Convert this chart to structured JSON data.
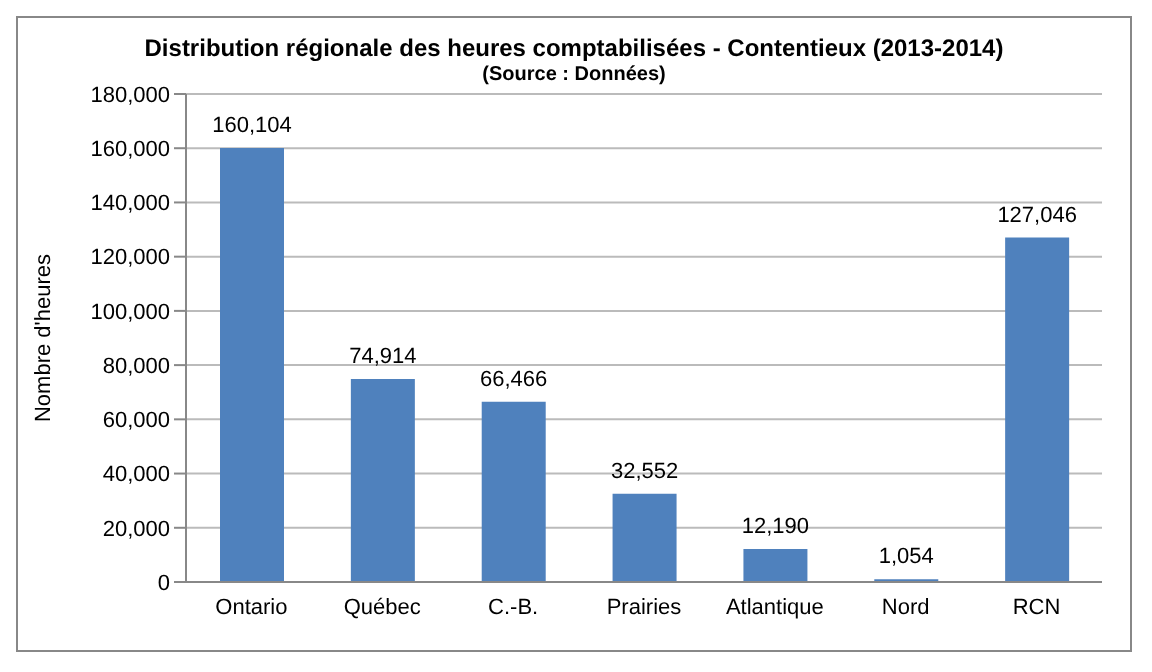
{
  "chart_data": {
    "type": "bar",
    "title": "Distribution régionale des heures comptabilisées  - Contentieux (2013-2014)",
    "subtitle": "(Source : Données)",
    "ylabel": "Nombre d'heures",
    "categories": [
      "Ontario",
      "Québec",
      "C.-B.",
      "Prairies",
      "Atlantique",
      "Nord",
      "RCN"
    ],
    "values": [
      160104,
      74914,
      66466,
      32552,
      12190,
      1054,
      127046
    ],
    "color": "#4f81bd",
    "value_labels": [
      "160,104",
      "74,914",
      "66,466",
      "32,552",
      "12,190",
      "1,054",
      "127,046"
    ],
    "ylim": [
      0,
      180000
    ],
    "yticks": [
      0,
      {
        "value": 20000,
        "label": "20,000"
      },
      {
        "value": 40000,
        "label": "40,000"
      },
      {
        "value": 60000,
        "label": "60,000"
      },
      {
        "value": 80000,
        "label": "80,000"
      },
      {
        "value": 100000,
        "label": "100,000"
      },
      {
        "value": 120000,
        "label": "120,000"
      },
      {
        "value": 140000,
        "label": "140,000"
      },
      {
        "value": 160000,
        "label": "160,000"
      },
      {
        "value": 180000,
        "label": "180,000"
      }
    ],
    "grid": "y",
    "legend": false
  }
}
